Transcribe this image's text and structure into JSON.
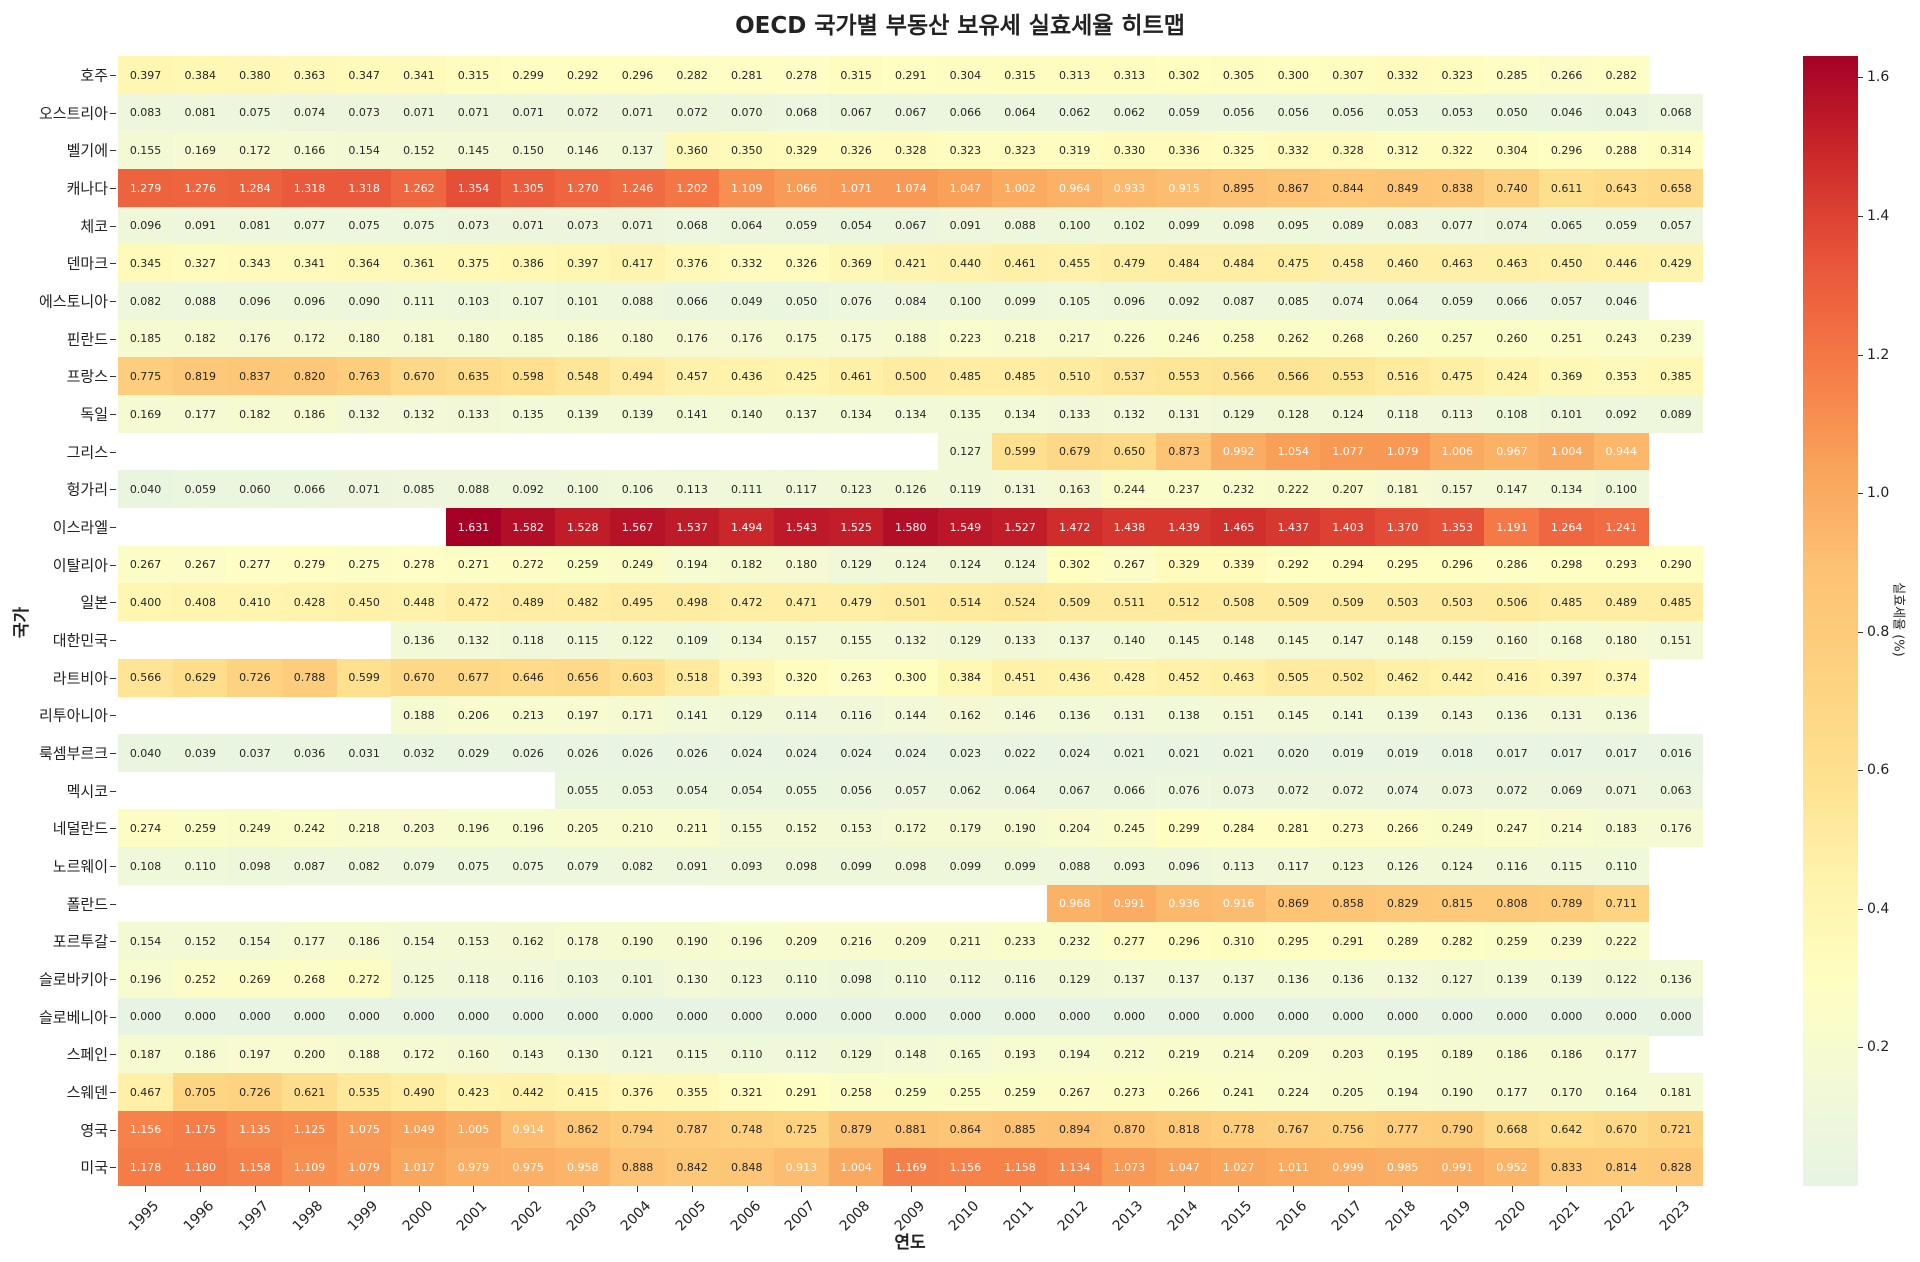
{
  "chart_data": {
    "type": "heatmap",
    "title": "OECD 국가별 부동산 보유세 실효세율 히트맵",
    "xlabel": "연도",
    "ylabel": "국가",
    "colorbar_label": "실효세율 (%)",
    "colorbar_ticks": [
      "0.2",
      "0.4",
      "0.6",
      "0.8",
      "1.0",
      "1.2",
      "1.4",
      "1.6"
    ],
    "color_range": [
      0,
      1.631
    ],
    "colormap_stops": [
      "#e7f4e4",
      "#f3f9d6",
      "#fefec2",
      "#fff2ab",
      "#fee18f",
      "#fdd17f",
      "#fdc274",
      "#f9a35a",
      "#f57a46",
      "#e9553a",
      "#cd2a2a",
      "#a50026"
    ],
    "x": [
      "1995",
      "1996",
      "1997",
      "1998",
      "1999",
      "2000",
      "2001",
      "2002",
      "2003",
      "2004",
      "2005",
      "2006",
      "2007",
      "2008",
      "2009",
      "2010",
      "2011",
      "2012",
      "2013",
      "2014",
      "2015",
      "2016",
      "2017",
      "2018",
      "2019",
      "2020",
      "2021",
      "2022",
      "2023"
    ],
    "y": [
      "호주",
      "오스트리아",
      "벨기에",
      "캐나다",
      "체코",
      "덴마크",
      "에스토니아",
      "핀란드",
      "프랑스",
      "독일",
      "그리스",
      "헝가리",
      "이스라엘",
      "이탈리아",
      "일본",
      "대한민국",
      "라트비아",
      "리투아니아",
      "룩셈부르크",
      "멕시코",
      "네덜란드",
      "노르웨이",
      "폴란드",
      "포르투갈",
      "슬로바키아",
      "슬로베니아",
      "스페인",
      "스웨덴",
      "영국",
      "미국"
    ],
    "values": [
      [
        0.397,
        0.384,
        0.38,
        0.363,
        0.347,
        0.341,
        0.315,
        0.299,
        0.292,
        0.296,
        0.282,
        0.281,
        0.278,
        0.315,
        0.291,
        0.304,
        0.315,
        0.313,
        0.313,
        0.302,
        0.305,
        0.3,
        0.307,
        0.332,
        0.323,
        0.285,
        0.266,
        0.282,
        null
      ],
      [
        0.083,
        0.081,
        0.075,
        0.074,
        0.073,
        0.071,
        0.071,
        0.071,
        0.072,
        0.071,
        0.072,
        0.07,
        0.068,
        0.067,
        0.067,
        0.066,
        0.064,
        0.062,
        0.062,
        0.059,
        0.056,
        0.056,
        0.056,
        0.053,
        0.053,
        0.05,
        0.046,
        0.043,
        0.068
      ],
      [
        0.155,
        0.169,
        0.172,
        0.166,
        0.154,
        0.152,
        0.145,
        0.15,
        0.146,
        0.137,
        0.36,
        0.35,
        0.329,
        0.326,
        0.328,
        0.323,
        0.323,
        0.319,
        0.33,
        0.336,
        0.325,
        0.332,
        0.328,
        0.312,
        0.322,
        0.304,
        0.296,
        0.288,
        0.314
      ],
      [
        1.279,
        1.276,
        1.284,
        1.318,
        1.318,
        1.262,
        1.354,
        1.305,
        1.27,
        1.246,
        1.202,
        1.109,
        1.066,
        1.071,
        1.074,
        1.047,
        1.002,
        0.964,
        0.933,
        0.915,
        0.895,
        0.867,
        0.844,
        0.849,
        0.838,
        0.74,
        0.611,
        0.643,
        0.658
      ],
      [
        0.096,
        0.091,
        0.081,
        0.077,
        0.075,
        0.075,
        0.073,
        0.071,
        0.073,
        0.071,
        0.068,
        0.064,
        0.059,
        0.054,
        0.067,
        0.091,
        0.088,
        0.1,
        0.102,
        0.099,
        0.098,
        0.095,
        0.089,
        0.083,
        0.077,
        0.074,
        0.065,
        0.059,
        0.057
      ],
      [
        0.345,
        0.327,
        0.343,
        0.341,
        0.364,
        0.361,
        0.375,
        0.386,
        0.397,
        0.417,
        0.376,
        0.332,
        0.326,
        0.369,
        0.421,
        0.44,
        0.461,
        0.455,
        0.479,
        0.484,
        0.484,
        0.475,
        0.458,
        0.46,
        0.463,
        0.463,
        0.45,
        0.446,
        0.429
      ],
      [
        0.082,
        0.088,
        0.096,
        0.096,
        0.09,
        0.111,
        0.103,
        0.107,
        0.101,
        0.088,
        0.066,
        0.049,
        0.05,
        0.076,
        0.084,
        0.1,
        0.099,
        0.105,
        0.096,
        0.092,
        0.087,
        0.085,
        0.074,
        0.064,
        0.059,
        0.066,
        0.057,
        0.046,
        null
      ],
      [
        0.185,
        0.182,
        0.176,
        0.172,
        0.18,
        0.181,
        0.18,
        0.185,
        0.186,
        0.18,
        0.176,
        0.176,
        0.175,
        0.175,
        0.188,
        0.223,
        0.218,
        0.217,
        0.226,
        0.246,
        0.258,
        0.262,
        0.268,
        0.26,
        0.257,
        0.26,
        0.251,
        0.243,
        0.239
      ],
      [
        0.775,
        0.819,
        0.837,
        0.82,
        0.763,
        0.67,
        0.635,
        0.598,
        0.548,
        0.494,
        0.457,
        0.436,
        0.425,
        0.461,
        0.5,
        0.485,
        0.485,
        0.51,
        0.537,
        0.553,
        0.566,
        0.566,
        0.553,
        0.516,
        0.475,
        0.424,
        0.369,
        0.353,
        0.385
      ],
      [
        0.169,
        0.177,
        0.182,
        0.186,
        0.132,
        0.132,
        0.133,
        0.135,
        0.139,
        0.139,
        0.141,
        0.14,
        0.137,
        0.134,
        0.134,
        0.135,
        0.134,
        0.133,
        0.132,
        0.131,
        0.129,
        0.128,
        0.124,
        0.118,
        0.113,
        0.108,
        0.101,
        0.092,
        0.089
      ],
      [
        null,
        null,
        null,
        null,
        null,
        null,
        null,
        null,
        null,
        null,
        null,
        null,
        null,
        null,
        null,
        0.127,
        0.599,
        0.679,
        0.65,
        0.873,
        0.992,
        1.054,
        1.077,
        1.079,
        1.006,
        0.967,
        1.004,
        0.944,
        null
      ],
      [
        0.04,
        0.059,
        0.06,
        0.066,
        0.071,
        0.085,
        0.088,
        0.092,
        0.1,
        0.106,
        0.113,
        0.111,
        0.117,
        0.123,
        0.126,
        0.119,
        0.131,
        0.163,
        0.244,
        0.237,
        0.232,
        0.222,
        0.207,
        0.181,
        0.157,
        0.147,
        0.134,
        0.1,
        null
      ],
      [
        null,
        null,
        null,
        null,
        null,
        null,
        1.631,
        1.582,
        1.528,
        1.567,
        1.537,
        1.494,
        1.543,
        1.525,
        1.58,
        1.549,
        1.527,
        1.472,
        1.438,
        1.439,
        1.465,
        1.437,
        1.403,
        1.37,
        1.353,
        1.191,
        1.264,
        1.241,
        null
      ],
      [
        0.267,
        0.267,
        0.277,
        0.279,
        0.275,
        0.278,
        0.271,
        0.272,
        0.259,
        0.249,
        0.194,
        0.182,
        0.18,
        0.129,
        0.124,
        0.124,
        0.124,
        0.302,
        0.267,
        0.329,
        0.339,
        0.292,
        0.294,
        0.295,
        0.296,
        0.286,
        0.298,
        0.293,
        0.29
      ],
      [
        0.4,
        0.408,
        0.41,
        0.428,
        0.45,
        0.448,
        0.472,
        0.489,
        0.482,
        0.495,
        0.498,
        0.472,
        0.471,
        0.479,
        0.501,
        0.514,
        0.524,
        0.509,
        0.511,
        0.512,
        0.508,
        0.509,
        0.509,
        0.503,
        0.503,
        0.506,
        0.485,
        0.489,
        0.485
      ],
      [
        null,
        null,
        null,
        null,
        null,
        0.136,
        0.132,
        0.118,
        0.115,
        0.122,
        0.109,
        0.134,
        0.157,
        0.155,
        0.132,
        0.129,
        0.133,
        0.137,
        0.14,
        0.145,
        0.148,
        0.145,
        0.147,
        0.148,
        0.159,
        0.16,
        0.168,
        0.18,
        0.151
      ],
      [
        0.566,
        0.629,
        0.726,
        0.788,
        0.599,
        0.67,
        0.677,
        0.646,
        0.656,
        0.603,
        0.518,
        0.393,
        0.32,
        0.263,
        0.3,
        0.384,
        0.451,
        0.436,
        0.428,
        0.452,
        0.463,
        0.505,
        0.502,
        0.462,
        0.442,
        0.416,
        0.397,
        0.374,
        null
      ],
      [
        null,
        null,
        null,
        null,
        null,
        0.188,
        0.206,
        0.213,
        0.197,
        0.171,
        0.141,
        0.129,
        0.114,
        0.116,
        0.144,
        0.162,
        0.146,
        0.136,
        0.131,
        0.138,
        0.151,
        0.145,
        0.141,
        0.139,
        0.143,
        0.136,
        0.131,
        0.136,
        null
      ],
      [
        0.04,
        0.039,
        0.037,
        0.036,
        0.031,
        0.032,
        0.029,
        0.026,
        0.026,
        0.026,
        0.026,
        0.024,
        0.024,
        0.024,
        0.024,
        0.023,
        0.022,
        0.024,
        0.021,
        0.021,
        0.021,
        0.02,
        0.019,
        0.019,
        0.018,
        0.017,
        0.017,
        0.017,
        0.016
      ],
      [
        null,
        null,
        null,
        null,
        null,
        null,
        null,
        null,
        0.055,
        0.053,
        0.054,
        0.054,
        0.055,
        0.056,
        0.057,
        0.062,
        0.064,
        0.067,
        0.066,
        0.076,
        0.073,
        0.072,
        0.072,
        0.074,
        0.073,
        0.072,
        0.069,
        0.071,
        0.063
      ],
      [
        0.274,
        0.259,
        0.249,
        0.242,
        0.218,
        0.203,
        0.196,
        0.196,
        0.205,
        0.21,
        0.211,
        0.155,
        0.152,
        0.153,
        0.172,
        0.179,
        0.19,
        0.204,
        0.245,
        0.299,
        0.284,
        0.281,
        0.273,
        0.266,
        0.249,
        0.247,
        0.214,
        0.183,
        0.176
      ],
      [
        0.108,
        0.11,
        0.098,
        0.087,
        0.082,
        0.079,
        0.075,
        0.075,
        0.079,
        0.082,
        0.091,
        0.093,
        0.098,
        0.099,
        0.098,
        0.099,
        0.099,
        0.088,
        0.093,
        0.096,
        0.113,
        0.117,
        0.123,
        0.126,
        0.124,
        0.116,
        0.115,
        0.11,
        null
      ],
      [
        null,
        null,
        null,
        null,
        null,
        null,
        null,
        null,
        null,
        null,
        null,
        null,
        null,
        null,
        null,
        null,
        null,
        0.968,
        0.991,
        0.936,
        0.916,
        0.869,
        0.858,
        0.829,
        0.815,
        0.808,
        0.789,
        0.711,
        null
      ],
      [
        0.154,
        0.152,
        0.154,
        0.177,
        0.186,
        0.154,
        0.153,
        0.162,
        0.178,
        0.19,
        0.19,
        0.196,
        0.209,
        0.216,
        0.209,
        0.211,
        0.233,
        0.232,
        0.277,
        0.296,
        0.31,
        0.295,
        0.291,
        0.289,
        0.282,
        0.259,
        0.239,
        0.222,
        null
      ],
      [
        0.196,
        0.252,
        0.269,
        0.268,
        0.272,
        0.125,
        0.118,
        0.116,
        0.103,
        0.101,
        0.13,
        0.123,
        0.11,
        0.098,
        0.11,
        0.112,
        0.116,
        0.129,
        0.137,
        0.137,
        0.137,
        0.136,
        0.136,
        0.132,
        0.127,
        0.139,
        0.139,
        0.122,
        0.136
      ],
      [
        0.0,
        0.0,
        0.0,
        0.0,
        0.0,
        0.0,
        0.0,
        0.0,
        0.0,
        0.0,
        0.0,
        0.0,
        0.0,
        0.0,
        0.0,
        0.0,
        0.0,
        0.0,
        0.0,
        0.0,
        0.0,
        0.0,
        0.0,
        0.0,
        0.0,
        0.0,
        0.0,
        0.0,
        0.0
      ],
      [
        0.187,
        0.186,
        0.197,
        0.2,
        0.188,
        0.172,
        0.16,
        0.143,
        0.13,
        0.121,
        0.115,
        0.11,
        0.112,
        0.129,
        0.148,
        0.165,
        0.193,
        0.194,
        0.212,
        0.219,
        0.214,
        0.209,
        0.203,
        0.195,
        0.189,
        0.186,
        0.186,
        0.177,
        null
      ],
      [
        0.467,
        0.705,
        0.726,
        0.621,
        0.535,
        0.49,
        0.423,
        0.442,
        0.415,
        0.376,
        0.355,
        0.321,
        0.291,
        0.258,
        0.259,
        0.255,
        0.259,
        0.267,
        0.273,
        0.266,
        0.241,
        0.224,
        0.205,
        0.194,
        0.19,
        0.177,
        0.17,
        0.164,
        0.181
      ],
      [
        1.156,
        1.175,
        1.135,
        1.125,
        1.075,
        1.049,
        1.005,
        0.914,
        0.862,
        0.794,
        0.787,
        0.748,
        0.725,
        0.879,
        0.881,
        0.864,
        0.885,
        0.894,
        0.87,
        0.818,
        0.778,
        0.767,
        0.756,
        0.777,
        0.79,
        0.668,
        0.642,
        0.67,
        0.721
      ],
      [
        1.178,
        1.18,
        1.158,
        1.109,
        1.079,
        1.017,
        0.979,
        0.975,
        0.958,
        0.888,
        0.842,
        0.848,
        0.913,
        1.004,
        1.169,
        1.156,
        1.158,
        1.134,
        1.073,
        1.047,
        1.027,
        1.011,
        0.999,
        0.985,
        0.991,
        0.952,
        0.833,
        0.814,
        0.828
      ]
    ]
  }
}
